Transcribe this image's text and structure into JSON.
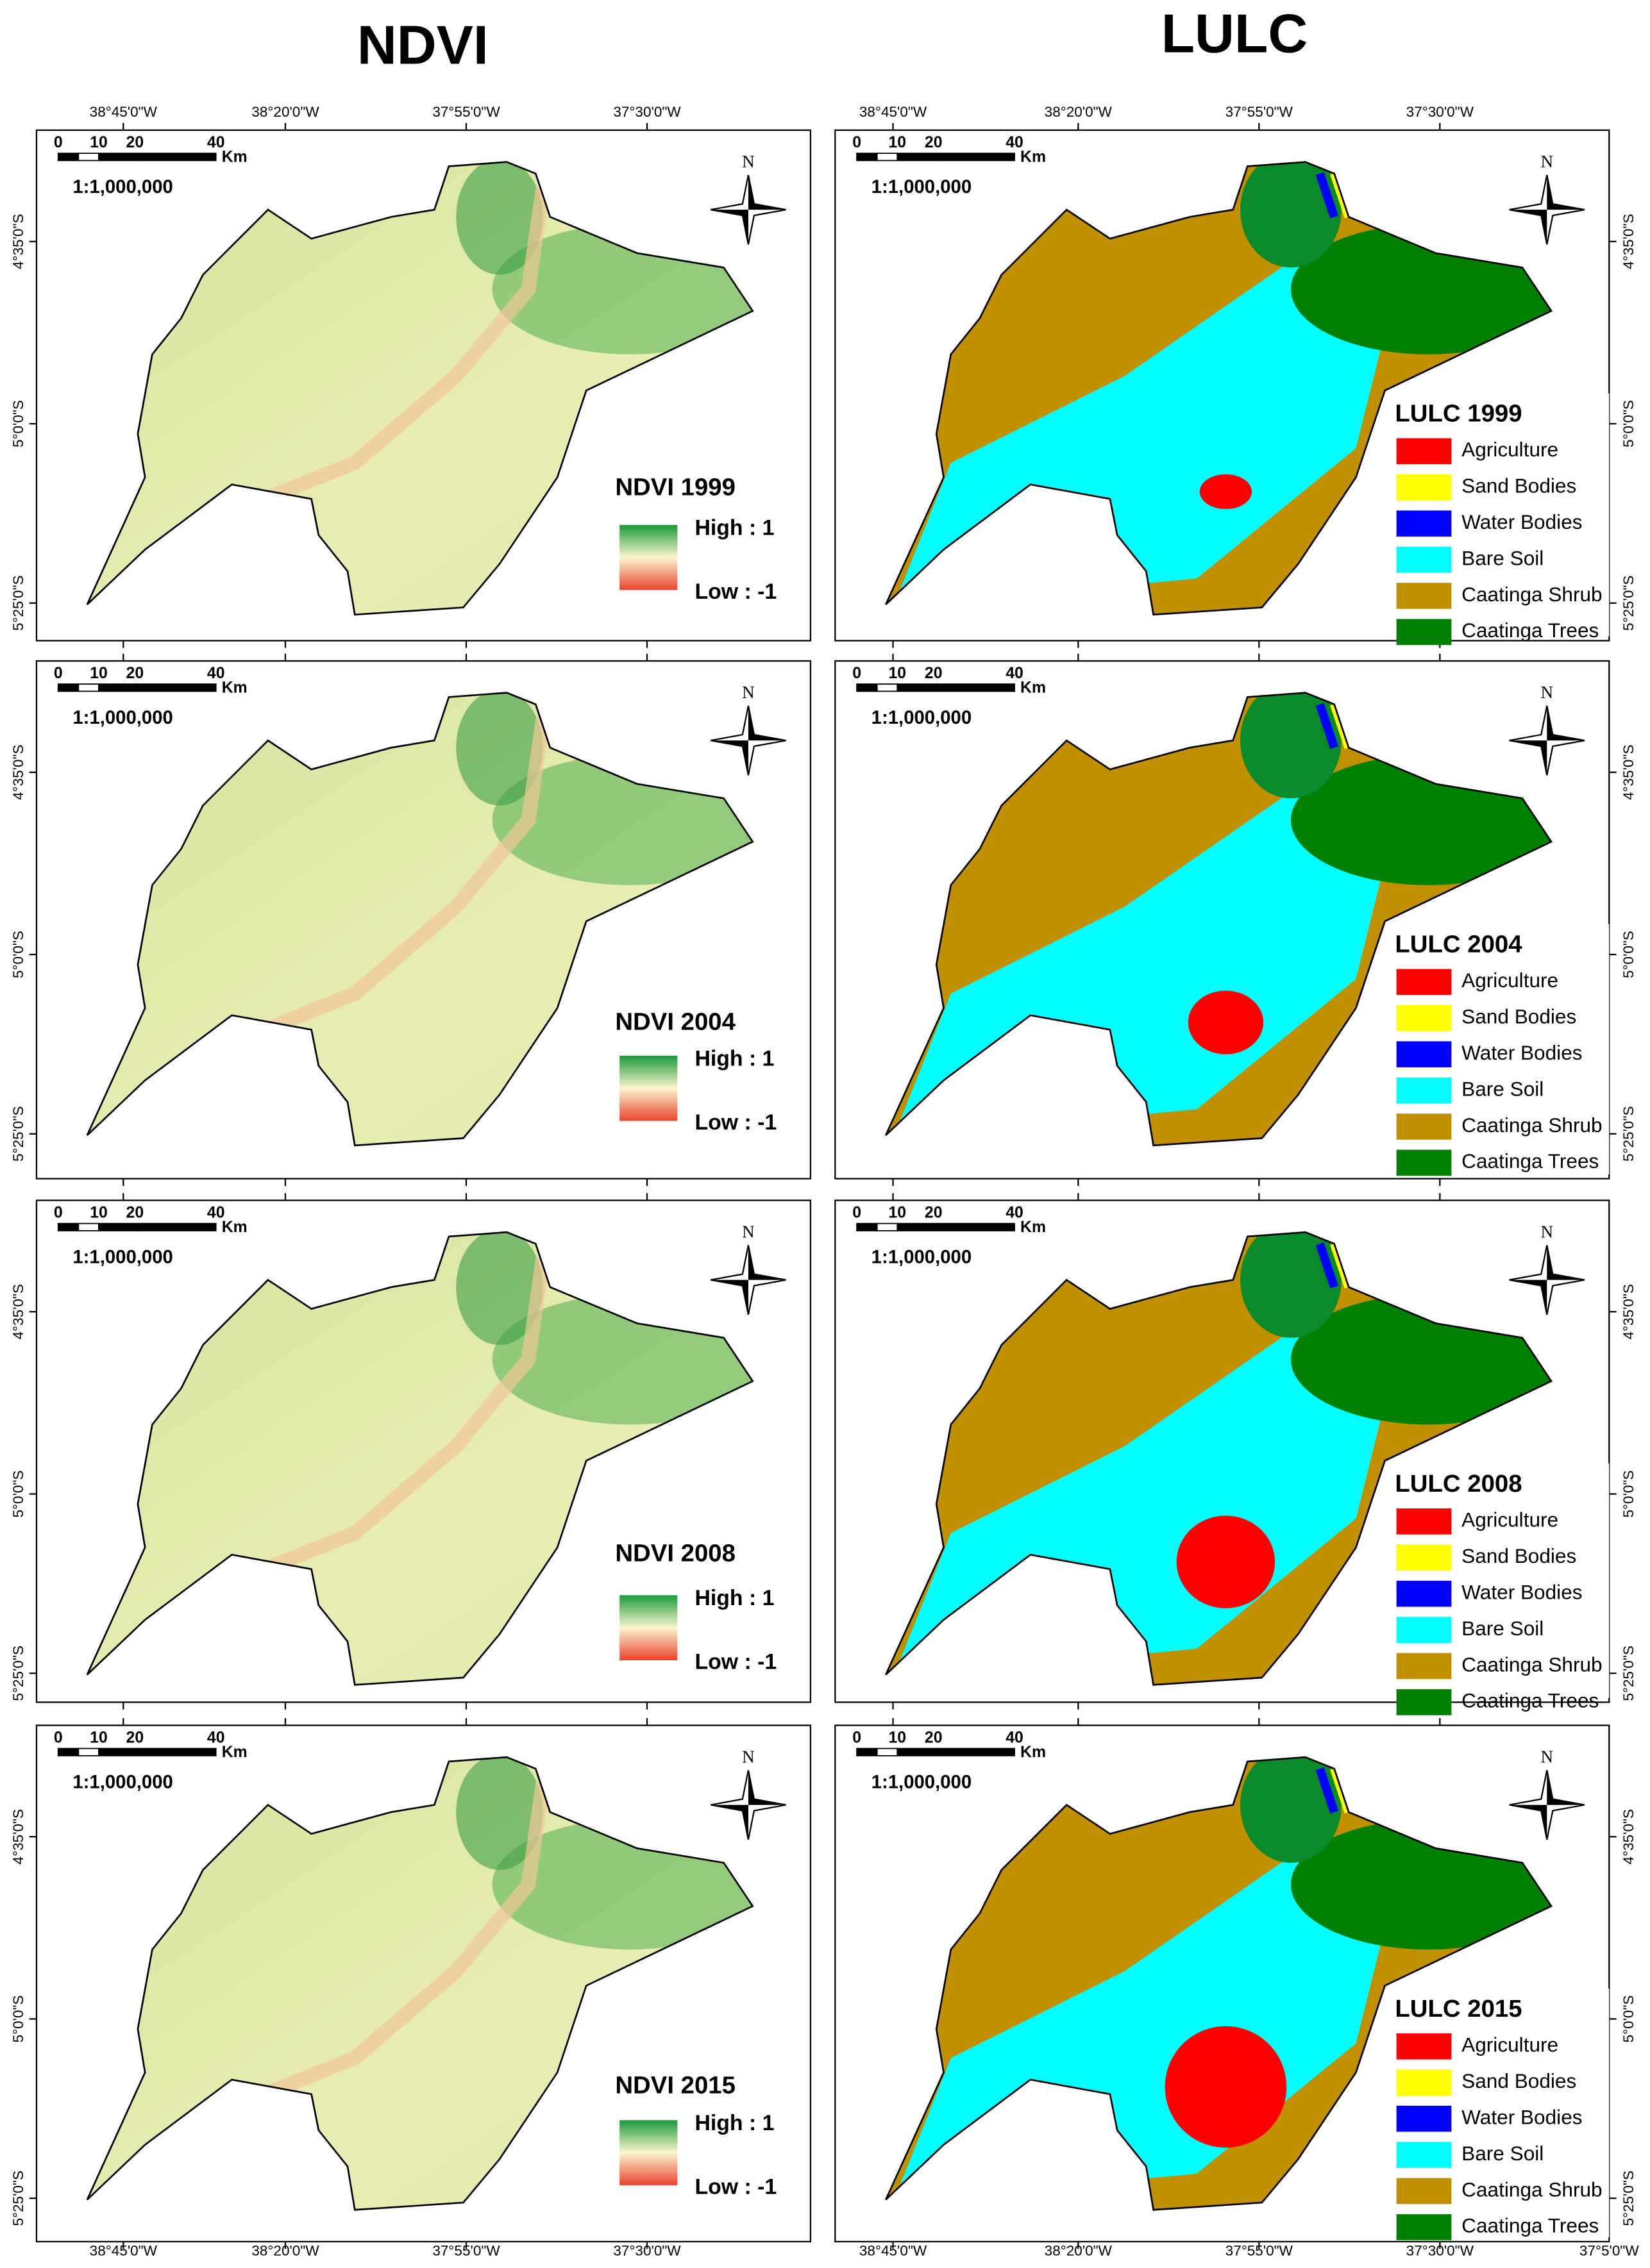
{
  "headers": {
    "ndvi": "NDVI",
    "lulc": "LULC"
  },
  "longitude_labels": [
    "38°45'0\"W",
    "38°20'0\"W",
    "37°55'0\"W",
    "37°30'0\"W",
    "37°5'0\"W"
  ],
  "latitude_labels": [
    "4°35'0\"S",
    "5°0'0\"S",
    "5°25'0\"S"
  ],
  "scale_bar": {
    "ticks": [
      "0",
      "10",
      "20",
      "40"
    ],
    "unit": "Km",
    "ratio": "1:1,000,000"
  },
  "north": "N",
  "ndvi_panels": [
    {
      "title": "NDVI 1999",
      "high": "High : 1",
      "low": "Low : -1"
    },
    {
      "title": "NDVI 2004",
      "high": "High : 1",
      "low": "Low : -1"
    },
    {
      "title": "NDVI 2008",
      "high": "High : 1",
      "low": "Low : -1"
    },
    {
      "title": "NDVI 2015",
      "high": "High : 1",
      "low": "Low : -1"
    }
  ],
  "lulc_panels": [
    {
      "title": "LULC 1999"
    },
    {
      "title": "LULC 2004"
    },
    {
      "title": "LULC 2008"
    },
    {
      "title": "LULC 2015"
    }
  ],
  "lulc_legend": [
    {
      "label": "Agriculture",
      "color": "#ff0000"
    },
    {
      "label": "Sand Bodies",
      "color": "#ffff00"
    },
    {
      "label": "Water Bodies",
      "color": "#0000ff"
    },
    {
      "label": "Bare Soil",
      "color": "#00ffff"
    },
    {
      "label": "Caatinga Shrub",
      "color": "#c09000"
    },
    {
      "label": "Caatinga Trees",
      "color": "#008000"
    }
  ]
}
